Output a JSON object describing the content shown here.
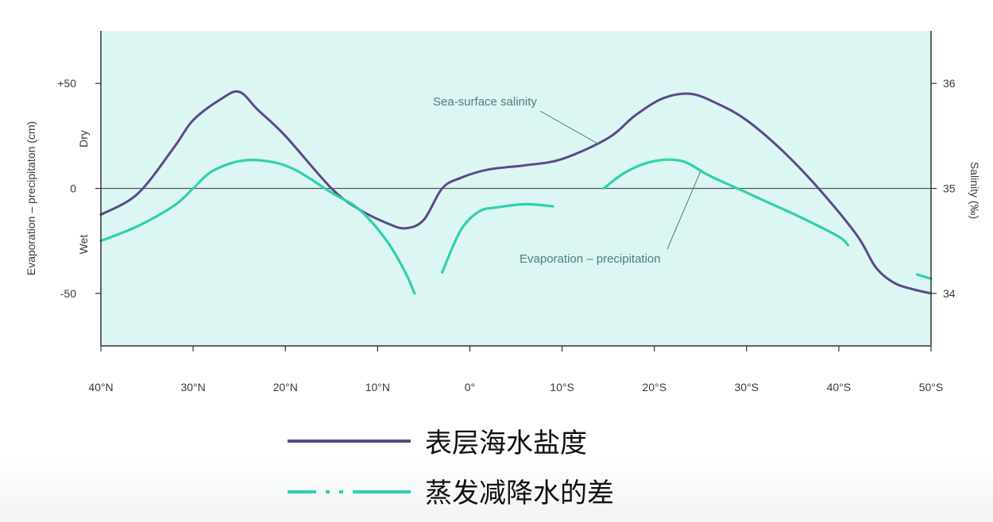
{
  "chart_data": {
    "type": "line",
    "xlabel": "",
    "x_tick_labels": [
      "40°N",
      "30°N",
      "20°N",
      "10°N",
      "0°",
      "10°S",
      "20°S",
      "30°S",
      "40°S",
      "50°S"
    ],
    "x_ticks": [
      40,
      30,
      20,
      10,
      0,
      -10,
      -20,
      -30,
      -40,
      -50
    ],
    "xlim": [
      40,
      -50
    ],
    "ylabel_left": "Evaporation – precipitaton (cm)",
    "ylim_left": [
      -75,
      75
    ],
    "y_ticks_left": [
      {
        "value": 50,
        "label": "+50"
      },
      {
        "value": 0,
        "label": "0"
      },
      {
        "value": -50,
        "label": "-50"
      }
    ],
    "left_side_labels": {
      "dry": "Dry",
      "wet": "Wet"
    },
    "ylabel_right": "Salinity (‰)",
    "ylim_right": [
      33.5,
      36.5
    ],
    "y_ticks_right": [
      36,
      35,
      34
    ],
    "reference_line_y": 0,
    "colors": {
      "salinity": "#5b4a8a",
      "evaporation": "#2fd1ad",
      "plot_bg": "#dcf6f4",
      "frame": "#333333",
      "zero_line": "#555555",
      "leader": "#4a7f7a"
    },
    "annotations": {
      "salinity": "Sea-surface salinity",
      "evaporation": "Evaporation – precipitation"
    },
    "series": [
      {
        "name": "表层海水盐度",
        "axis": "right",
        "segments": [
          [
            [
              40,
              34.75
            ],
            [
              36,
              34.95
            ],
            [
              32,
              35.4
            ],
            [
              30,
              35.65
            ],
            [
              27,
              35.85
            ],
            [
              25,
              35.92
            ],
            [
              23,
              35.75
            ],
            [
              20,
              35.5
            ],
            [
              15,
              35.0
            ],
            [
              12,
              34.8
            ],
            [
              9,
              34.67
            ],
            [
              7,
              34.62
            ],
            [
              5,
              34.7
            ],
            [
              3,
              35.0
            ],
            [
              1,
              35.1
            ],
            [
              -2,
              35.18
            ],
            [
              -6,
              35.22
            ],
            [
              -10,
              35.28
            ],
            [
              -15,
              35.48
            ],
            [
              -18,
              35.7
            ],
            [
              -21,
              35.86
            ],
            [
              -24,
              35.9
            ],
            [
              -27,
              35.8
            ],
            [
              -30,
              35.65
            ],
            [
              -34,
              35.35
            ],
            [
              -38,
              34.98
            ],
            [
              -42,
              34.55
            ],
            [
              -44,
              34.25
            ],
            [
              -46,
              34.1
            ],
            [
              -48,
              34.04
            ],
            [
              -50,
              34.0
            ]
          ]
        ]
      },
      {
        "name": "蒸发减降水的差",
        "axis": "left",
        "segments": [
          [
            [
              40,
              -25
            ],
            [
              36,
              -18
            ],
            [
              32,
              -8
            ],
            [
              30,
              0
            ],
            [
              28,
              8
            ],
            [
              25,
              13
            ],
            [
              22,
              13
            ],
            [
              19,
              9
            ],
            [
              15,
              -2
            ],
            [
              12,
              -10
            ],
            [
              9,
              -25
            ],
            [
              7,
              -40
            ],
            [
              6,
              -50
            ]
          ],
          [
            [
              3,
              -40
            ],
            [
              1,
              -20
            ],
            [
              -1,
              -11
            ],
            [
              -3,
              -9
            ],
            [
              -6,
              -7.5
            ],
            [
              -9,
              -8.5
            ]
          ],
          [
            [
              -14.5,
              0
            ],
            [
              -17,
              8
            ],
            [
              -20,
              13
            ],
            [
              -23,
              13
            ],
            [
              -26,
              6
            ],
            [
              -29,
              0
            ],
            [
              -32,
              -6
            ],
            [
              -36,
              -14
            ],
            [
              -40,
              -23
            ],
            [
              -41,
              -27
            ]
          ],
          [
            [
              -48.5,
              -41
            ],
            [
              -50,
              -43
            ]
          ]
        ]
      }
    ],
    "legend": [
      {
        "label": "表层海水盐度",
        "style": "solid"
      },
      {
        "label": "蒸发减降水的差",
        "style": "dash-dot"
      }
    ]
  }
}
